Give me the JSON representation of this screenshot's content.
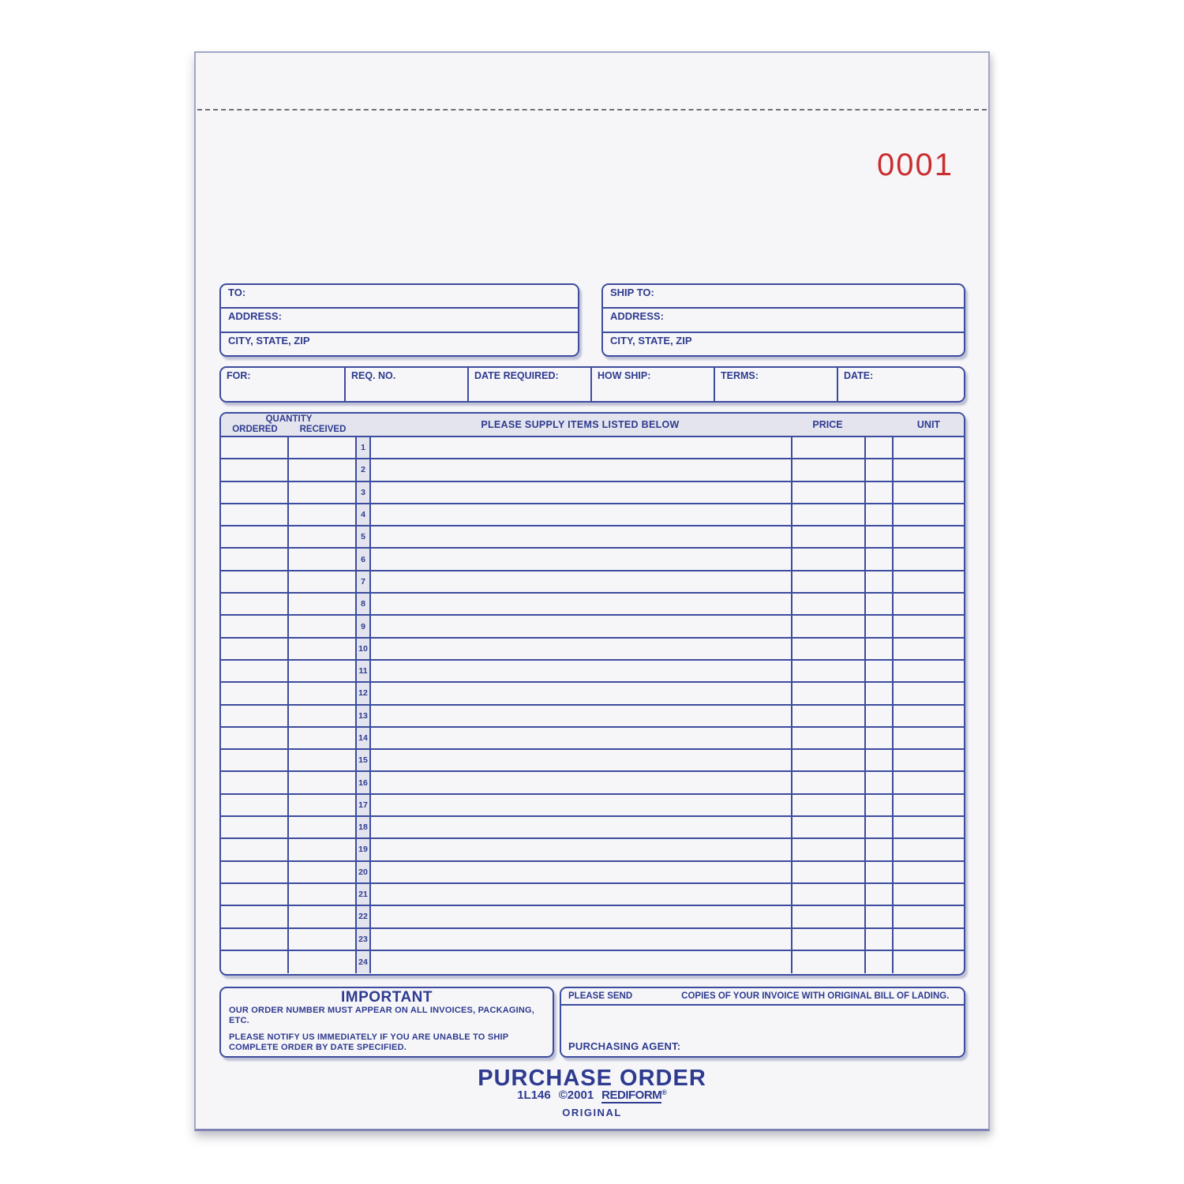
{
  "form": {
    "number": "0001",
    "colors": {
      "line_blue": "#3d4c9e",
      "text_blue": "#2e3b8f",
      "band_gray": "#e4e4ee",
      "paper": "#f6f6f9",
      "number_red": "#cb2e2e"
    },
    "to_box": {
      "to": "TO:",
      "address": "ADDRESS:",
      "city": "CITY, STATE, ZIP"
    },
    "ship_box": {
      "ship_to": "SHIP TO:",
      "address": "ADDRESS:",
      "city": "CITY, STATE, ZIP"
    },
    "info_row": [
      "FOR:",
      "REQ. NO.",
      "DATE REQUIRED:",
      "HOW SHIP:",
      "TERMS:",
      "DATE:"
    ],
    "table": {
      "quantity_header": "QUANTITY",
      "ordered_header": "ORDERED",
      "received_header": "RECEIVED",
      "supply_header": "PLEASE SUPPLY ITEMS LISTED BELOW",
      "price_header": "PRICE",
      "unit_header": "UNIT",
      "row_numbers": [
        1,
        2,
        3,
        4,
        5,
        6,
        7,
        8,
        9,
        10,
        11,
        12,
        13,
        14,
        15,
        16,
        17,
        18,
        19,
        20,
        21,
        22,
        23,
        24
      ]
    },
    "important_box": {
      "title": "IMPORTANT",
      "paragraph1": "OUR ORDER NUMBER MUST APPEAR ON ALL INVOICES, PACKAGING, ETC.",
      "paragraph2": "PLEASE NOTIFY US IMMEDIATELY IF YOU ARE UNABLE TO SHIP COMPLETE ORDER BY DATE SPECIFIED."
    },
    "send_box": {
      "please_send": "PLEASE SEND",
      "copies_text": "COPIES OF YOUR INVOICE WITH ORIGINAL BILL OF LADING.",
      "purchasing_agent": "PURCHASING AGENT:"
    },
    "footer": {
      "title": "PURCHASE ORDER",
      "code": "1L146",
      "copyright": "©2001",
      "brand": "REDIFORM",
      "registered": "®",
      "copy_type": "ORIGINAL"
    }
  }
}
